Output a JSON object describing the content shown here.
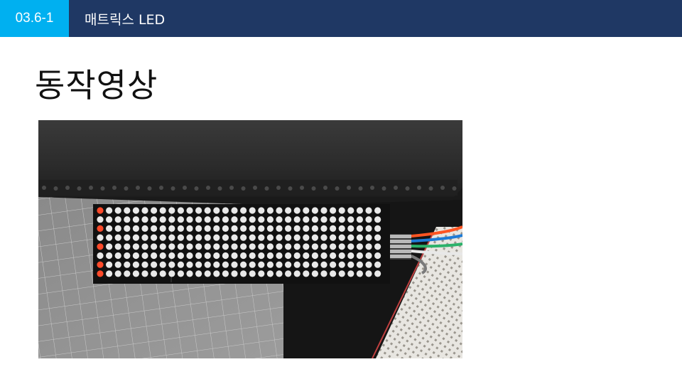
{
  "header": {
    "section_number": "03.6-1",
    "title": "매트릭스 LED",
    "badge_color": "#00b0f0",
    "bar_color": "#1f3864"
  },
  "slide": {
    "title": "동작영상"
  },
  "photo": {
    "subject": "led-matrix-demo-photo",
    "matrix_modules": 4,
    "lit_led_color": "#ff4a2a"
  }
}
